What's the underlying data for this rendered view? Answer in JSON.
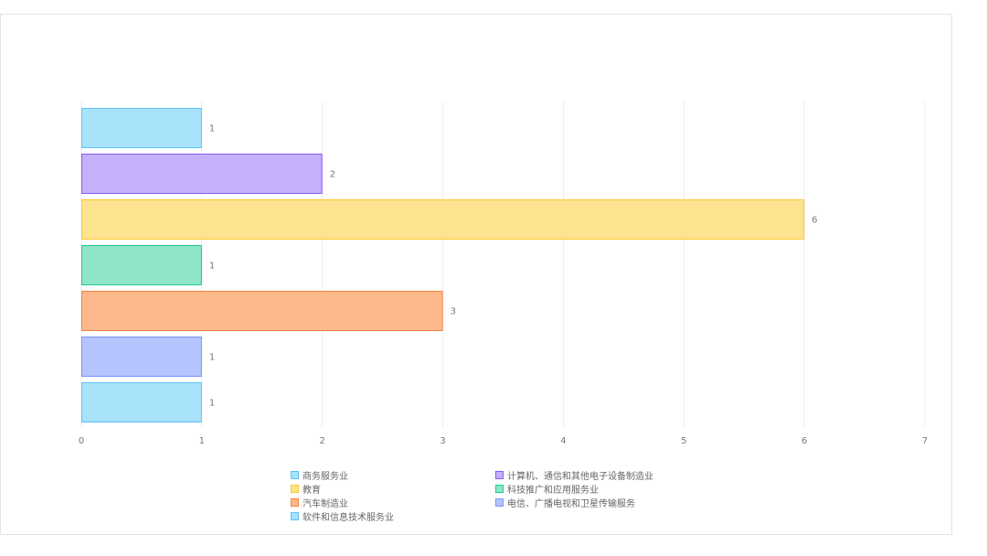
{
  "chart_data": {
    "type": "bar",
    "orientation": "horizontal",
    "categories": [
      "商务服务业",
      "计算机、通信和其他电子设备制造业",
      "教育",
      "科技推广和应用服务业",
      "汽车制造业",
      "电信、广播电视和卫星传输服务",
      "软件和信息技术服务业"
    ],
    "values": [
      1,
      2,
      6,
      1,
      3,
      1,
      1
    ],
    "colors": [
      "#5bc4f5",
      "#8c5cf2",
      "#fcc931",
      "#24c88a",
      "#fb7f3b",
      "#7c95fb",
      "#5bc4f5"
    ],
    "fill_colors": [
      "#a9e2fb",
      "#c4b0fb",
      "#fde28f",
      "#8ee6c6",
      "#fdb98c",
      "#b5c4fd",
      "#a9e2fb"
    ],
    "xlim": [
      0,
      7
    ],
    "x_ticks": [
      "0",
      "1",
      "2",
      "3",
      "4",
      "5",
      "6",
      "7"
    ],
    "data_labels": [
      "1",
      "2",
      "6",
      "1",
      "3",
      "1",
      "1"
    ],
    "grid": true,
    "legend_position": "bottom"
  }
}
